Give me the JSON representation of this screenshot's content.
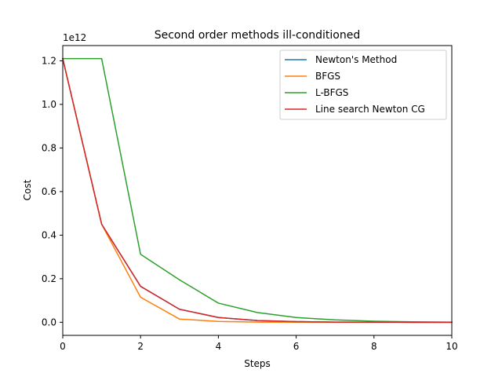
{
  "chart_data": {
    "type": "line",
    "title": "Second order methods ill-conditioned",
    "xlabel": "Steps",
    "ylabel": "Cost",
    "y_offset_text": "1e12",
    "xlim": [
      0,
      10
    ],
    "ylim": [
      -0.06,
      1.27
    ],
    "xticks": [
      0,
      2,
      4,
      6,
      8,
      10
    ],
    "yticks": [
      0.0,
      0.2,
      0.4,
      0.6,
      0.8,
      1.0,
      1.2
    ],
    "ytick_labels": [
      "0.0",
      "0.2",
      "0.4",
      "0.6",
      "0.8",
      "1.0",
      "1.2"
    ],
    "x": [
      0,
      1,
      2,
      3,
      4,
      5,
      6,
      7,
      8,
      9,
      10
    ],
    "series": [
      {
        "name": "Newton's Method",
        "color": "#1f77b4",
        "values": [
          1.21,
          0.45,
          0.165,
          0.06,
          0.022,
          0.008,
          0.003,
          0.001,
          0.0004,
          0.0001,
          5e-05
        ]
      },
      {
        "name": "BFGS",
        "color": "#ff7f0e",
        "values": [
          1.21,
          0.45,
          0.115,
          0.015,
          0.004,
          0.001,
          0.0003,
          0.0001,
          5e-05,
          2e-05,
          1e-05
        ]
      },
      {
        "name": "L-BFGS",
        "color": "#2ca02c",
        "values": [
          1.21,
          1.21,
          0.312,
          0.195,
          0.088,
          0.045,
          0.022,
          0.011,
          0.005,
          0.002,
          0.001
        ]
      },
      {
        "name": "Line search Newton CG",
        "color": "#d62728",
        "values": [
          1.21,
          0.45,
          0.165,
          0.06,
          0.022,
          0.008,
          0.003,
          0.001,
          0.0004,
          0.0001,
          5e-05
        ]
      }
    ],
    "legend_position": "upper-right",
    "grid": false
  }
}
